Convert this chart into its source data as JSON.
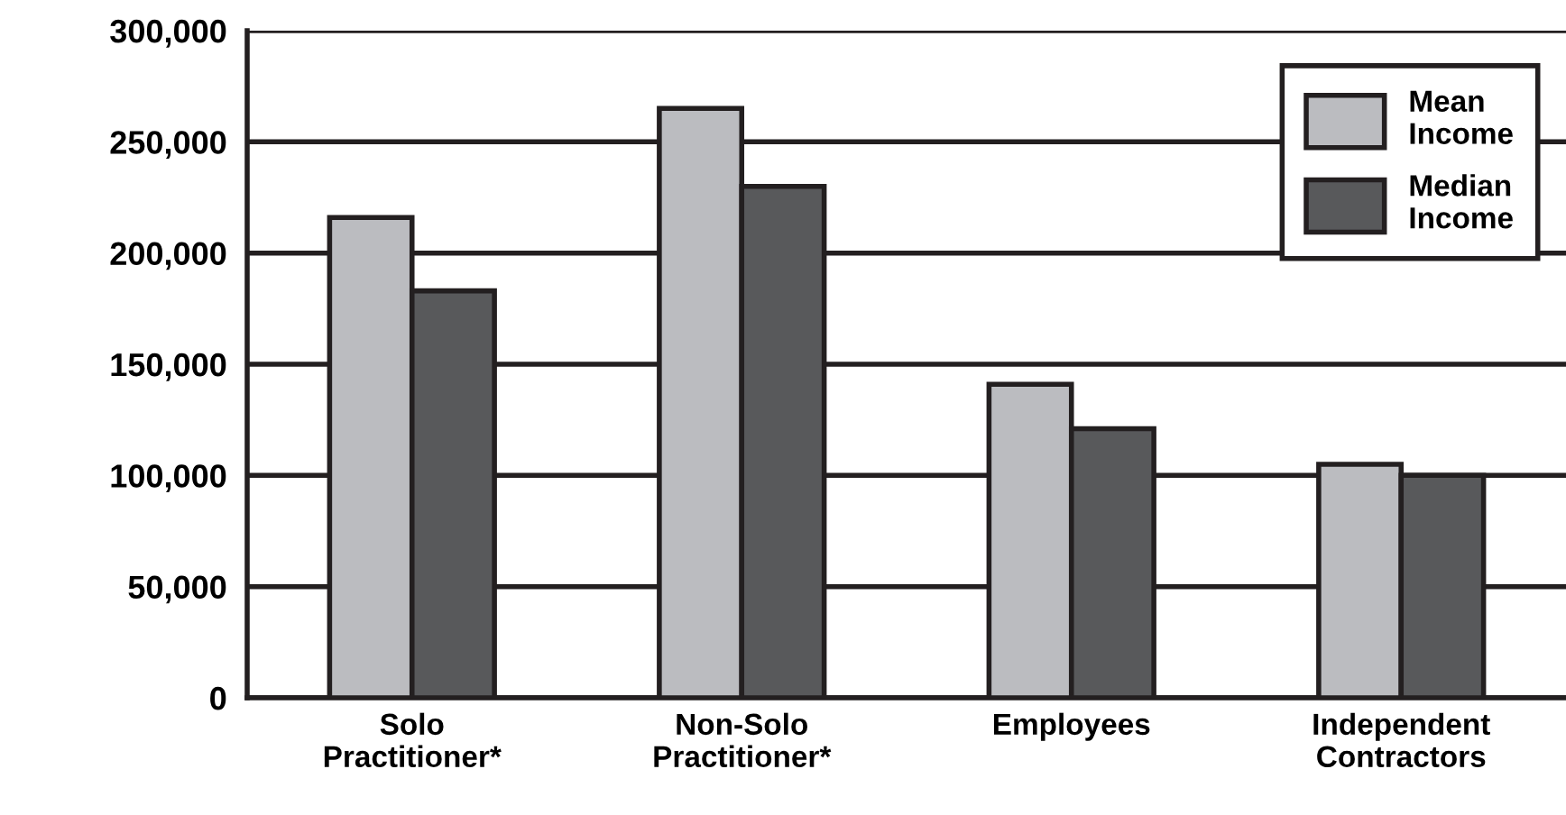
{
  "chart_data": {
    "type": "bar",
    "categories": [
      "Solo\nPractitioner*",
      "Non-Solo\nPractitioner*",
      "Employees",
      "Independent\nContractors"
    ],
    "series": [
      {
        "name": "Mean\nIncome",
        "color": "#bbbcc0",
        "values": [
          216000,
          265000,
          141000,
          105000
        ]
      },
      {
        "name": "Median\nIncome",
        "color": "#58595b",
        "values": [
          183000,
          230000,
          121000,
          100000
        ]
      }
    ],
    "ylim": [
      0,
      300000
    ],
    "yticks": [
      {
        "value": 0,
        "label": "0"
      },
      {
        "value": 50000,
        "label": "50,000"
      },
      {
        "value": 100000,
        "label": "100,000"
      },
      {
        "value": 150000,
        "label": "150,000"
      },
      {
        "value": 200000,
        "label": "200,000"
      },
      {
        "value": 250000,
        "label": "250,000"
      },
      {
        "value": 300000,
        "label": "300,000"
      }
    ],
    "grid": "y",
    "legend": "top right"
  }
}
